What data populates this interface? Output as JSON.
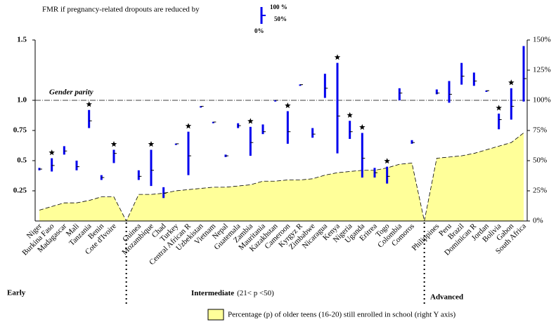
{
  "chart_data": {
    "type": "range-area",
    "categories": [
      "Niger",
      "Burkina Faso",
      "Madagascar",
      "Mali",
      "Tanzania",
      "Benin",
      "Cote d'Ivoire",
      null,
      "Guinea",
      "Mozambique",
      "Chad",
      "Turkey",
      "Central African R",
      "Uzbekistan",
      "Vietnam",
      "Nepal",
      "Guatemala",
      "Zambia",
      "Mauritania",
      "Kazakhstan",
      "Cameroon",
      "Kyrgyz R",
      "Zimbabwe",
      "Nicaragua",
      "Kenya",
      "Nigeria",
      "Uganda",
      "Eritrea",
      "Togo",
      "Colombia",
      "Comoros",
      null,
      "Philippines",
      "Peru",
      "Brazil",
      "Dominican R",
      "Jordan",
      "Bolivia",
      "Gabon",
      "South Africa"
    ],
    "fmr": {
      "name": "FMR if pregnancy-related dropouts are reduced by",
      "color": "#0000ee",
      "levels": [
        {
          "label": "0%",
          "values": [
            0.42,
            0.41,
            0.55,
            0.42,
            0.77,
            0.34,
            0.48,
            null,
            0.34,
            0.29,
            0.19,
            0.63,
            0.38,
            0.94,
            0.81,
            0.53,
            0.77,
            0.54,
            0.72,
            0.99,
            0.64,
            1.12,
            0.69,
            1.02,
            0.56,
            0.68,
            0.36,
            0.36,
            0.31,
            1.0,
            0.64,
            null,
            1.05,
            0.98,
            1.13,
            1.12,
            1.07,
            0.76,
            0.84,
            0.99
          ]
        },
        {
          "label": "50%",
          "values": [
            0.43,
            0.46,
            0.58,
            0.45,
            0.83,
            0.36,
            0.56,
            null,
            0.37,
            0.42,
            0.23,
            0.64,
            0.54,
            0.95,
            0.82,
            0.54,
            0.79,
            0.65,
            0.74,
            1.0,
            0.74,
            1.13,
            0.72,
            1.1,
            0.87,
            0.74,
            0.52,
            0.4,
            0.37,
            1.06,
            0.65,
            null,
            1.06,
            1.05,
            1.2,
            1.16,
            1.08,
            0.84,
            0.95,
            1.18
          ]
        },
        {
          "label": "100 %",
          "values": [
            0.44,
            0.52,
            0.62,
            0.5,
            0.92,
            0.38,
            0.59,
            null,
            0.42,
            0.59,
            0.28,
            0.64,
            0.74,
            0.95,
            0.82,
            0.55,
            0.81,
            0.78,
            0.8,
            1.0,
            0.91,
            1.13,
            0.77,
            1.22,
            1.31,
            0.83,
            0.73,
            0.44,
            0.45,
            1.1,
            0.67,
            null,
            1.09,
            1.16,
            1.31,
            1.23,
            1.08,
            0.89,
            1.1,
            1.45
          ]
        }
      ],
      "stars": [
        false,
        true,
        false,
        false,
        true,
        false,
        true,
        false,
        false,
        true,
        false,
        false,
        true,
        false,
        false,
        false,
        false,
        true,
        false,
        false,
        true,
        false,
        false,
        false,
        true,
        true,
        true,
        false,
        true,
        false,
        false,
        false,
        false,
        false,
        false,
        false,
        false,
        true,
        true,
        false
      ]
    },
    "series": [
      {
        "name": "Percentage (p) of older teens (16-20) still enrolled in school (right Y axis)",
        "color": "#ffff99",
        "axis": "y2",
        "values": [
          9,
          12,
          15,
          15,
          17,
          20,
          20,
          0,
          22,
          22,
          23,
          25,
          26,
          27,
          28,
          28,
          29,
          30,
          33,
          33,
          34,
          34,
          35,
          38,
          40,
          41,
          42,
          42,
          44,
          47,
          48,
          0,
          52,
          53,
          54,
          56,
          59,
          62,
          65,
          73
        ]
      }
    ],
    "reference_line": {
      "value": 1,
      "label": "Gender parity"
    },
    "ylim": [
      0,
      1.5
    ],
    "yticks": [
      {
        "value": 0.25,
        "label": "0.25"
      },
      0.5,
      0.75,
      {
        "value": 1,
        "label": "1.0"
      },
      1.5
    ],
    "y2lim": [
      0,
      150
    ],
    "y2ticks": [
      {
        "value": 0,
        "label": "0%"
      },
      {
        "value": 25,
        "label": "25%"
      },
      {
        "value": 50,
        "label": "50%"
      },
      {
        "value": 75,
        "label": "75%"
      },
      {
        "value": 100,
        "label": "100%"
      },
      {
        "value": 125,
        "label": "125%"
      },
      {
        "value": 150,
        "label": "150%"
      }
    ],
    "groups": [
      {
        "label": "Early"
      },
      {
        "label": "Intermediate",
        "note": "(21< p <50)"
      },
      {
        "label": "Advanced"
      }
    ]
  }
}
